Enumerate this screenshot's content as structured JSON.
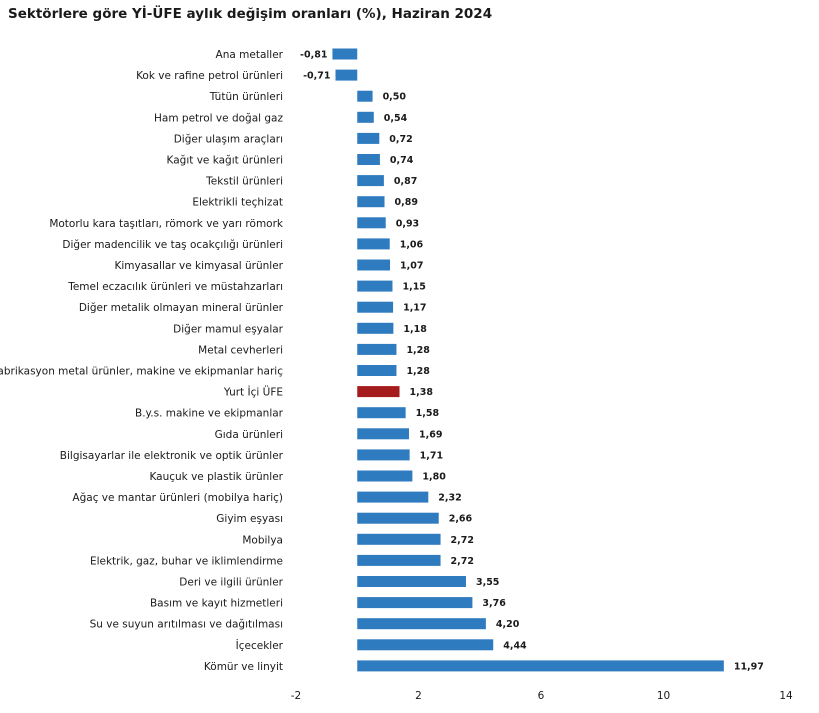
{
  "chart_data": {
    "type": "bar",
    "orientation": "horizontal",
    "title": "Sektörlere göre Yİ-ÜFE aylık değişim oranları (%), Haziran 2024",
    "xlim": [
      -2,
      14
    ],
    "xticks": [
      "-2",
      "2",
      "6",
      "10",
      "14"
    ],
    "xtick_values": [
      -2,
      2,
      6,
      10,
      14
    ],
    "bar_color": "#2e7bbf",
    "highlight_color": "#a51c1c",
    "highlight_category": "Yurt İçi ÜFE",
    "grid": false,
    "legend": "none",
    "categories": [
      "Ana metaller",
      "Kok ve rafine petrol ürünleri",
      "Tütün ürünleri",
      "Ham petrol ve doğal gaz",
      "Diğer ulaşım araçları",
      "Kağıt ve kağıt ürünleri",
      "Tekstil ürünleri",
      "Elektrikli teçhizat",
      "Motorlu kara taşıtları, römork ve yarı römork",
      "Diğer madencilik ve taş ocakçılığı ürünleri",
      "Kimyasallar ve kimyasal ürünler",
      "Temel eczacılık ürünleri ve müstahzarları",
      "Diğer metalik olmayan mineral ürünler",
      "Diğer mamul eşyalar",
      "Metal cevherleri",
      "Fabrikasyon metal ürünler, makine ve ekipmanlar hariç",
      "Yurt İçi ÜFE",
      "B.y.s. makine ve ekipmanlar",
      "Gıda ürünleri",
      "Bilgisayarlar ile elektronik ve optik ürünler",
      "Kauçuk ve plastik ürünler",
      "Ağaç ve mantar ürünleri (mobilya hariç)",
      "Giyim eşyası",
      "Mobilya",
      "Elektrik, gaz, buhar ve iklimlendirme",
      "Deri ve ilgili ürünler",
      "Basım ve kayıt hizmetleri",
      "Su ve suyun arıtılması ve dağıtılması",
      "İçecekler",
      "Kömür ve linyit"
    ],
    "values": [
      -0.81,
      -0.71,
      0.5,
      0.54,
      0.72,
      0.74,
      0.87,
      0.89,
      0.93,
      1.06,
      1.07,
      1.15,
      1.17,
      1.18,
      1.28,
      1.28,
      1.38,
      1.58,
      1.69,
      1.71,
      1.8,
      2.32,
      2.66,
      2.72,
      2.72,
      3.55,
      3.76,
      4.2,
      4.44,
      11.97
    ],
    "value_labels": [
      "-0,81",
      "-0,71",
      "0,50",
      "0,54",
      "0,72",
      "0,74",
      "0,87",
      "0,89",
      "0,93",
      "1,06",
      "1,07",
      "1,15",
      "1,17",
      "1,18",
      "1,28",
      "1,28",
      "1,38",
      "1,58",
      "1,69",
      "1,71",
      "1,80",
      "2,32",
      "2,66",
      "2,72",
      "2,72",
      "3,55",
      "3,76",
      "4,20",
      "4,44",
      "11,97"
    ]
  }
}
